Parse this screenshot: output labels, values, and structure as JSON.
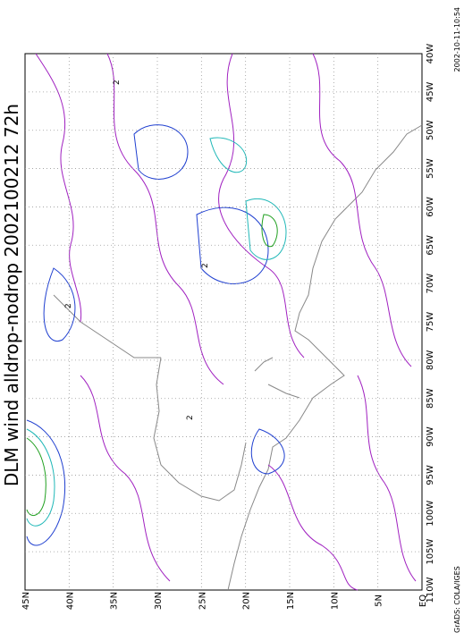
{
  "title": "DLM wind alldrop-nodrop 2002100212 72h",
  "timestamp": "2002-10-11-10:54",
  "credit": "GrADS: COLA/IGES",
  "latitude_labels": [
    "45N",
    "40N",
    "35N",
    "30N",
    "25N",
    "20N",
    "15N",
    "10N",
    "5N",
    "EQ"
  ],
  "longitude_labels": [
    "110W",
    "105W",
    "100W",
    "95W",
    "90W",
    "85W",
    "80W",
    "75W",
    "70W",
    "65W",
    "60W",
    "55W",
    "50W",
    "45W",
    "40W"
  ],
  "contour_label": "2"
}
